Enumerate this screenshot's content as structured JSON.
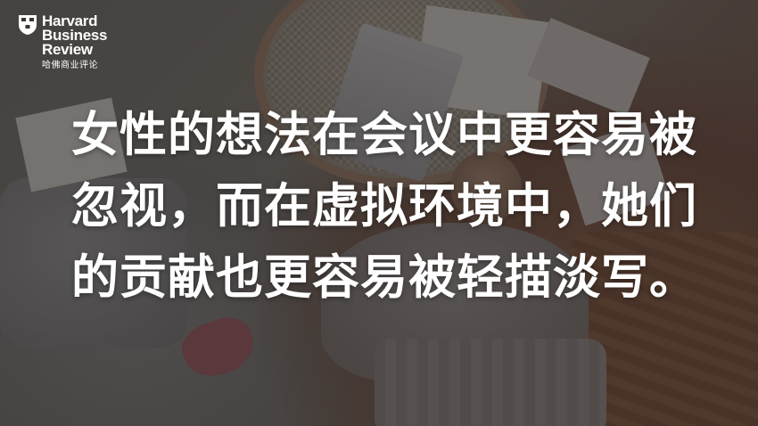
{
  "logo": {
    "line1": "Harvard",
    "line2": "Business",
    "line3": "Review",
    "chinese": "哈佛商业评论"
  },
  "headline": {
    "lines": [
      "女性的想法在会议中更容易被",
      "忽视，而在虚拟环境中，她们",
      "的贡献也更容易被轻描淡写。"
    ]
  },
  "colors": {
    "text": "#ffffff",
    "overlay": "rgba(35,30,28,0.38)"
  }
}
